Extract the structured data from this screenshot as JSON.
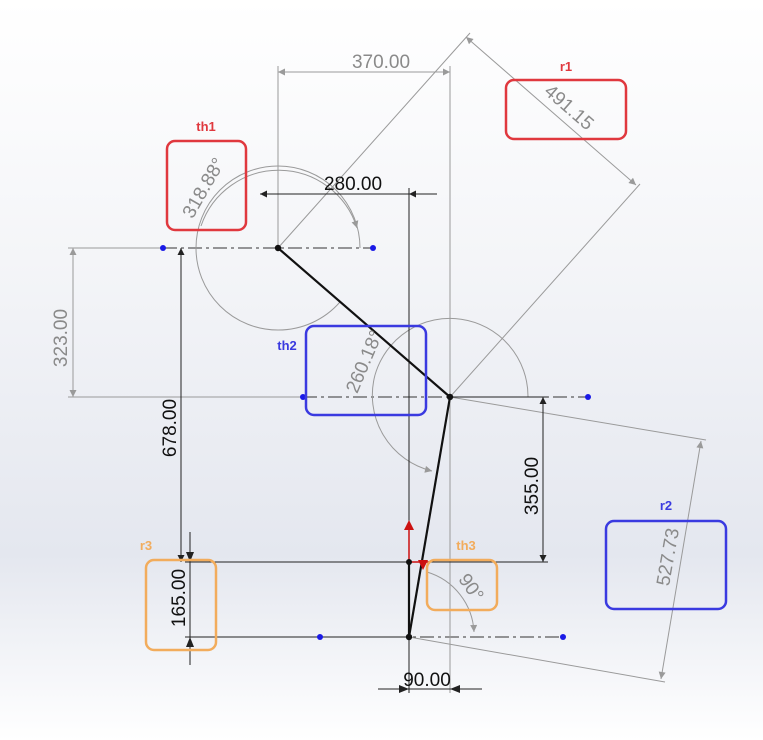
{
  "colors": {
    "background": "#eef0f5",
    "dimension_grey": "#9a9a9a",
    "dimension_dark": "#222222",
    "link": "#111111",
    "point_blue": "#1a1ae6",
    "tag_red": "#e0383e",
    "tag_blue": "#3a3ae0",
    "tag_orange": "#f2ac5c",
    "origin_red": "#cc1111"
  },
  "dimensions": {
    "d370": "370.00",
    "d491": "491.15",
    "d280": "280.00",
    "d318": "318.88°",
    "d323": "323.00",
    "d260": "260.18°",
    "d678": "678.00",
    "d355": "355.00",
    "d527": "527.73",
    "d165": "165.00",
    "d90ang": "90°",
    "d90": "90.00"
  },
  "tags": {
    "r1": "r1",
    "th1": "th1",
    "th2": "th2",
    "r2": "r2",
    "r3": "r3",
    "th3": "th3"
  }
}
